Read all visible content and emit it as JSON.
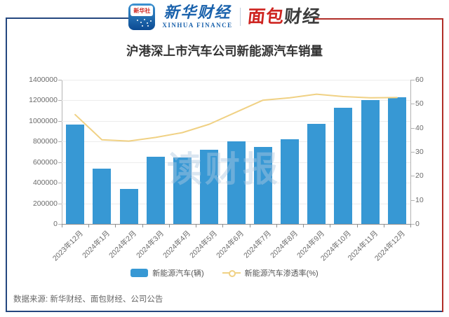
{
  "header": {
    "xinhua_app_label": "新华社",
    "xinhua_finance_cn": "新华财经",
    "xinhua_finance_en": "XINHUA FINANCE",
    "bread_part1": "面包",
    "bread_part2": "财经"
  },
  "title": "沪港深上市汽车公司新能源汽车销量",
  "watermark": "读财报",
  "chart_data": {
    "type": "bar+line",
    "title": "沪港深上市汽车公司新能源汽车销量",
    "categories": [
      "2023年12月",
      "2024年1月",
      "2024年2月",
      "2024年3月",
      "2024年4月",
      "2024年5月",
      "2024年6月",
      "2024年7月",
      "2024年8月",
      "2024年9月",
      "2024年10月",
      "2024年11月",
      "2024年12月"
    ],
    "series": [
      {
        "name": "新能源汽车(辆)",
        "type": "bar",
        "y_axis": "left",
        "color": "#3798D4",
        "values": [
          965000,
          540000,
          340000,
          655000,
          645000,
          720000,
          800000,
          745000,
          820000,
          975000,
          1130000,
          1205000,
          1230000
        ]
      },
      {
        "name": "新能源汽车渗透率(%)",
        "type": "line",
        "y_axis": "right",
        "color": "#F0D184",
        "values": [
          45.5,
          35,
          34.5,
          36,
          38,
          41.5,
          46.5,
          51.5,
          52.5,
          54,
          53,
          52.5,
          52.6
        ]
      }
    ],
    "left_axis": {
      "min": 0,
      "max": 1400000,
      "step": 200000,
      "labels_top_to_bottom": [
        "1400000",
        "1200000",
        "1000000",
        "800000",
        "600000",
        "400000",
        "200000",
        "0"
      ]
    },
    "right_axis": {
      "min": 0,
      "max": 60,
      "step": 10,
      "labels_top_to_bottom": [
        "60",
        "50",
        "40",
        "30",
        "20",
        "10",
        "0"
      ]
    },
    "grid": true,
    "legend_position": "bottom"
  },
  "legend": [
    {
      "label": "新能源汽车(辆)",
      "color": "#3798D4"
    },
    {
      "label": "新能源汽车渗透率(%)",
      "color": "#F0D184"
    }
  ],
  "footer": {
    "source": "数据来源: 新华财经、面包财经、公司公告"
  },
  "colors": {
    "bar": "#3798D4",
    "line": "#F0D184",
    "frame_blue": "#24477F",
    "frame_red": "#B02E28",
    "xinhua_blue": "#1A62AC",
    "bread_red": "#CE2420"
  }
}
